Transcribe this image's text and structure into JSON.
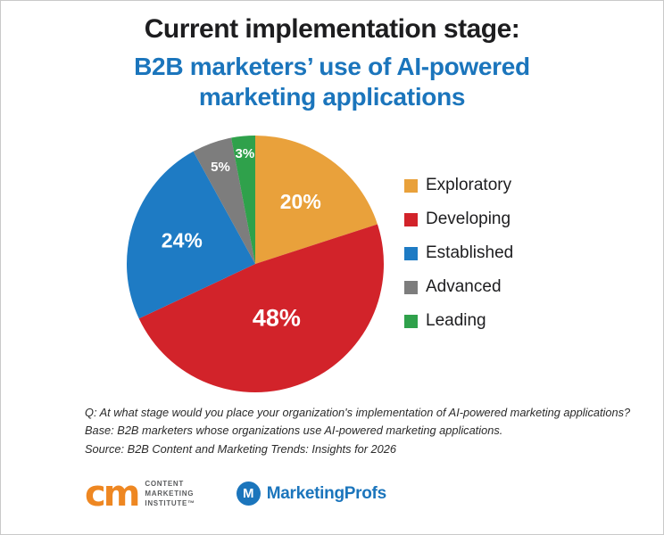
{
  "header": {
    "title": "Current implementation stage:",
    "subtitle": "B2B marketers’ use of AI-powered marketing applications"
  },
  "chart_data": {
    "type": "pie",
    "title": "Current implementation stage: B2B marketers’ use of AI-powered marketing applications",
    "start_angle_deg": -90,
    "direction": "clockwise",
    "legend_position": "right",
    "value_suffix": "%",
    "series": [
      {
        "label": "Exploratory",
        "value": 20,
        "color": "#e9a13b"
      },
      {
        "label": "Developing",
        "value": 48,
        "color": "#d2232a"
      },
      {
        "label": "Established",
        "value": 24,
        "color": "#1e7bc4"
      },
      {
        "label": "Advanced",
        "value": 5,
        "color": "#7d7d7d"
      },
      {
        "label": "Leading",
        "value": 3,
        "color": "#2fa14b"
      }
    ]
  },
  "footer": {
    "line1": "Q: At what stage would you place your organization's implementation of AI-powered marketing applications?",
    "line2": "Base: B2B marketers whose organizations use AI-powered marketing applications.",
    "line3": "Source: B2B Content and Marketing Trends: Insights for 2026"
  },
  "logos": {
    "cmi": {
      "mark": "cm",
      "lines": [
        "CONTENT",
        "MARKETING",
        "INSTITUTE™"
      ]
    },
    "marketingprofs": {
      "icon_letter": "M",
      "text": "MarketingProfs"
    }
  }
}
